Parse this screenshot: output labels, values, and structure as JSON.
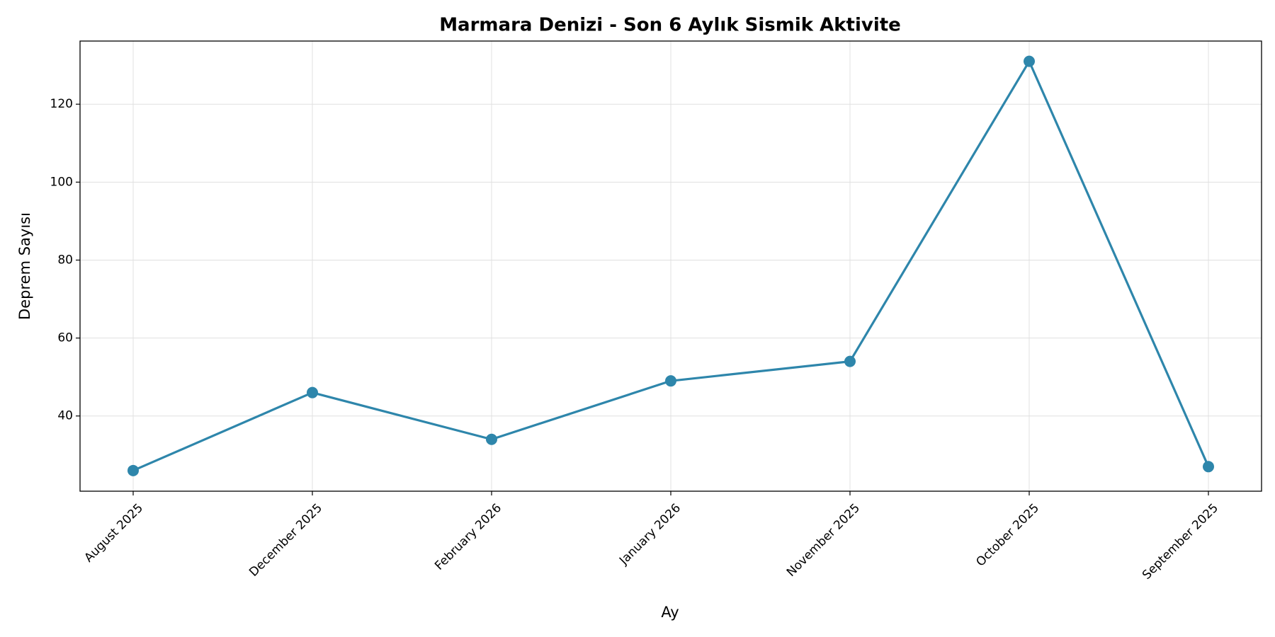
{
  "chart_data": {
    "type": "line",
    "title": "Marmara Denizi - Son 6 Aylık Sismik Aktivite",
    "x_label": "Ay",
    "y_label": "Deprem Sayısı",
    "categories": [
      "August 2025",
      "December 2025",
      "February 2026",
      "January 2026",
      "November 2025",
      "October 2025",
      "September 2025"
    ],
    "series": [
      {
        "name": "Deprem Sayısı",
        "color": "#2e86ab",
        "values": [
          26,
          46,
          34,
          49,
          54,
          131,
          27
        ]
      }
    ],
    "ylim": [
      20.7,
      136.2
    ],
    "yticks": [
      40,
      60,
      80,
      100,
      120
    ],
    "grid": true
  }
}
